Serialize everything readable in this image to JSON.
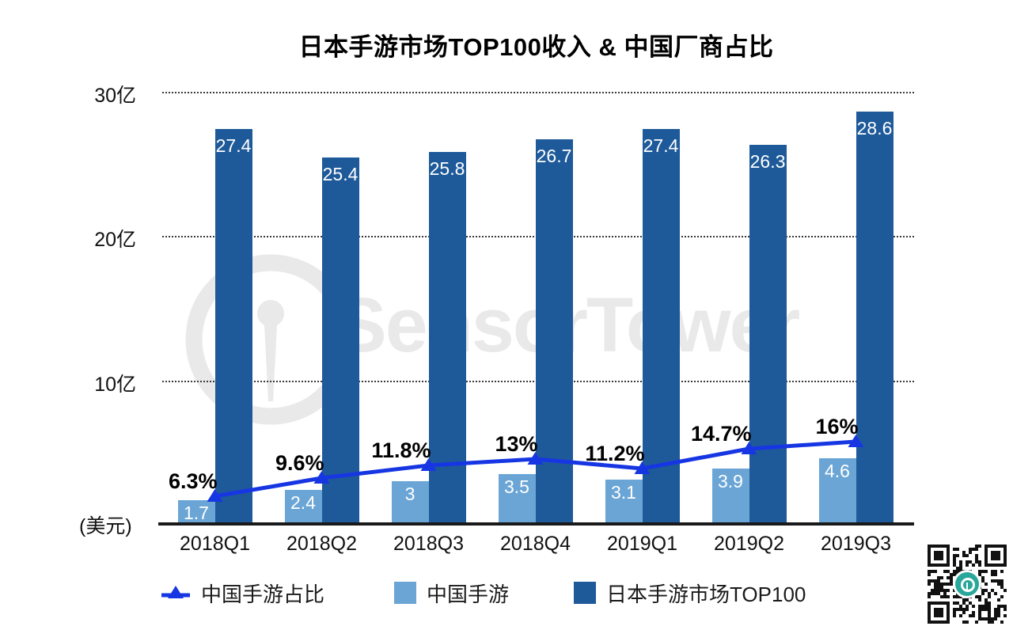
{
  "title": "日本手游市场TOP100收入 & 中国厂商占比",
  "watermark": {
    "text": "SensorTower",
    "logo": "sensortower-logo"
  },
  "axes": {
    "y_unit_label": "(美元)",
    "y_ticks": [
      {
        "label": "10亿",
        "value": 10
      },
      {
        "label": "20亿",
        "value": 20
      },
      {
        "label": "30亿",
        "value": 30
      }
    ],
    "x_categories": [
      "2018Q1",
      "2018Q2",
      "2018Q3",
      "2018Q4",
      "2019Q1",
      "2019Q2",
      "2019Q3"
    ]
  },
  "chart_data": {
    "type": "combo-bar-line",
    "categories": [
      "2018Q1",
      "2018Q2",
      "2018Q3",
      "2018Q4",
      "2019Q1",
      "2019Q2",
      "2019Q3"
    ],
    "series": [
      {
        "name": "中国手游占比",
        "type": "line",
        "unit": "percent",
        "values": [
          6.3,
          9.6,
          11.8,
          13,
          11.2,
          14.7,
          16
        ],
        "display_labels": [
          "6.3%",
          "9.6%",
          "11.8%",
          "13%",
          "11.2%",
          "14.7%",
          "16%"
        ],
        "color": "#1736e3"
      },
      {
        "name": "中国手游",
        "type": "bar",
        "unit": "亿美元",
        "values": [
          1.7,
          2.4,
          3,
          3.5,
          3.1,
          3.9,
          4.6
        ],
        "display_labels": [
          "1.7",
          "2.4",
          "3",
          "3.5",
          "3.1",
          "3.9",
          "4.6"
        ],
        "color": "#6aa5d5"
      },
      {
        "name": "日本手游市场TOP100",
        "type": "bar",
        "unit": "亿美元",
        "values": [
          27.4,
          25.4,
          25.8,
          26.7,
          27.4,
          26.3,
          28.6
        ],
        "display_labels": [
          "27.4",
          "25.4",
          "25.8",
          "26.7",
          "27.4",
          "26.3",
          "28.6"
        ],
        "color": "#1e5a99"
      }
    ],
    "ylim": [
      0,
      30
    ],
    "grid": "horizontal-dotted",
    "legend_position": "bottom"
  },
  "legend": {
    "items": [
      {
        "label": "中国手游占比",
        "marker": "line-triangle",
        "color": "#1736e3"
      },
      {
        "label": "中国手游",
        "marker": "square",
        "color": "#6aa5d5"
      },
      {
        "label": "日本手游市场TOP100",
        "marker": "square",
        "color": "#1e5a99"
      }
    ]
  },
  "qr_code": {
    "name": "sensortower-qr",
    "center_logo_color": "#2aa79b"
  }
}
